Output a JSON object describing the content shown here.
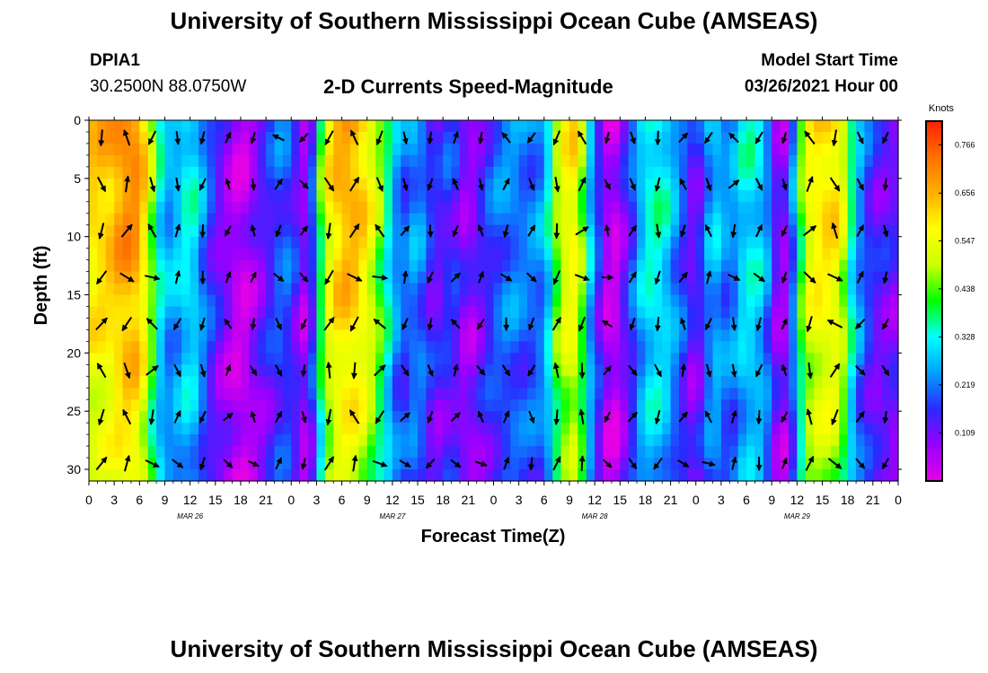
{
  "header": {
    "title_top": "University of Southern Mississippi Ocean Cube (AMSEAS)",
    "title_bottom": "University of Southern Mississippi Ocean Cube (AMSEAS)",
    "station": "DPIA1",
    "coords": "30.2500N  88.0750W",
    "product": "2-D Currents Speed-Magnitude",
    "model_start_label": "Model Start Time",
    "model_start_value": "03/26/2021 Hour 00"
  },
  "chart_data": {
    "type": "heatmap",
    "title": "2-D Currents Speed-Magnitude",
    "xlabel": "Forecast Time(Z)",
    "ylabel": "Depth (ft)",
    "x_tick_labels": [
      "0",
      "3",
      "6",
      "9",
      "12",
      "15",
      "18",
      "21",
      "0",
      "3",
      "6",
      "9",
      "12",
      "15",
      "18",
      "21",
      "0",
      "3",
      "6",
      "9",
      "12",
      "15",
      "18",
      "21",
      "0",
      "3",
      "6",
      "9",
      "12",
      "15",
      "18",
      "21",
      "0"
    ],
    "day_labels": [
      "MAR 26",
      "MAR 27",
      "MAR 28",
      "MAR 29"
    ],
    "xlim_hours": [
      0,
      96
    ],
    "y_ticks": [
      0,
      5,
      10,
      15,
      20,
      25,
      30
    ],
    "ylim_ft": [
      0,
      31
    ],
    "y_inverted": true,
    "colorbar": {
      "unit": "Knots",
      "tick_values": [
        "0.766",
        "0.656",
        "0.547",
        "0.438",
        "0.328",
        "0.219",
        "0.109"
      ],
      "range": [
        0.0,
        0.82
      ],
      "colors": [
        "#e600e6",
        "#9900ff",
        "#2a2aff",
        "#00a0ff",
        "#00ffff",
        "#00ff00",
        "#ccff00",
        "#ffff00",
        "#ffb000",
        "#ff7000",
        "#ff2000"
      ]
    },
    "speed_profile_by_hour": [
      {
        "h": 0,
        "v": 0.62
      },
      {
        "h": 3,
        "v": 0.66
      },
      {
        "h": 4,
        "v": 0.72
      },
      {
        "h": 6,
        "v": 0.7
      },
      {
        "h": 8,
        "v": 0.4
      },
      {
        "h": 9,
        "v": 0.26
      },
      {
        "h": 11,
        "v": 0.3
      },
      {
        "h": 12,
        "v": 0.36
      },
      {
        "h": 13,
        "v": 0.28
      },
      {
        "h": 15,
        "v": 0.14
      },
      {
        "h": 18,
        "v": 0.03
      },
      {
        "h": 21,
        "v": 0.14
      },
      {
        "h": 23,
        "v": 0.22
      },
      {
        "h": 24,
        "v": 0.18
      },
      {
        "h": 25,
        "v": 0.12
      },
      {
        "h": 26,
        "v": 0.05
      },
      {
        "h": 28,
        "v": 0.55
      },
      {
        "h": 30,
        "v": 0.68
      },
      {
        "h": 32,
        "v": 0.66
      },
      {
        "h": 34,
        "v": 0.52
      },
      {
        "h": 36,
        "v": 0.3
      },
      {
        "h": 37,
        "v": 0.2
      },
      {
        "h": 39,
        "v": 0.26
      },
      {
        "h": 41,
        "v": 0.13
      },
      {
        "h": 43,
        "v": 0.18
      },
      {
        "h": 45,
        "v": 0.08
      },
      {
        "h": 48,
        "v": 0.2
      },
      {
        "h": 50,
        "v": 0.24
      },
      {
        "h": 52,
        "v": 0.22
      },
      {
        "h": 54,
        "v": 0.25
      },
      {
        "h": 56,
        "v": 0.55
      },
      {
        "h": 58,
        "v": 0.6
      },
      {
        "h": 59,
        "v": 0.35
      },
      {
        "h": 61,
        "v": 0.1
      },
      {
        "h": 62,
        "v": 0.02
      },
      {
        "h": 63,
        "v": 0.08
      },
      {
        "h": 65,
        "v": 0.24
      },
      {
        "h": 66,
        "v": 0.34
      },
      {
        "h": 68,
        "v": 0.35
      },
      {
        "h": 70,
        "v": 0.22
      },
      {
        "h": 72,
        "v": 0.1
      },
      {
        "h": 74,
        "v": 0.3
      },
      {
        "h": 76,
        "v": 0.22
      },
      {
        "h": 78,
        "v": 0.34
      },
      {
        "h": 80,
        "v": 0.3
      },
      {
        "h": 82,
        "v": 0.06
      },
      {
        "h": 83,
        "v": 0.12
      },
      {
        "h": 85,
        "v": 0.55
      },
      {
        "h": 87,
        "v": 0.62
      },
      {
        "h": 89,
        "v": 0.6
      },
      {
        "h": 91,
        "v": 0.28
      },
      {
        "h": 93,
        "v": 0.14
      },
      {
        "h": 96,
        "v": 0.12
      }
    ],
    "current_vectors_deg": [
      200,
      160,
      195,
      210,
      30,
      340,
      200,
      35,
      330,
      20,
      45,
      120,
      205,
      175,
      340,
      15,
      200,
      150,
      340,
      105,
      310,
      40,
      200,
      120,
      170,
      160,
      30,
      20,
      210,
      145,
      40,
      135,
      195,
      200,
      170,
      190
    ]
  }
}
